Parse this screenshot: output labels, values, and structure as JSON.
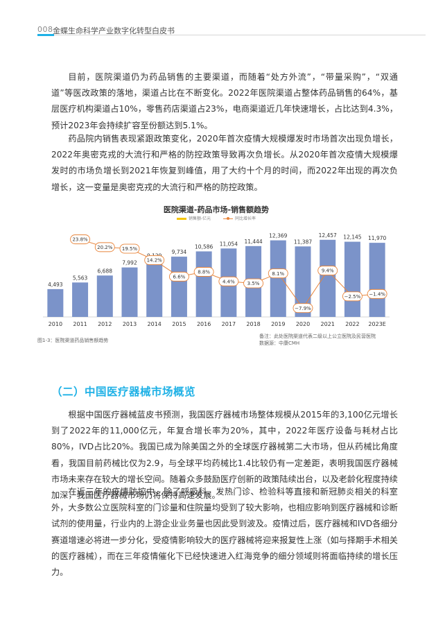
{
  "header": {
    "page_number": "008",
    "title": "金蝶生命科学产业数字化转型白皮书"
  },
  "paragraphs_top": [
    "目前，医院渠道仍为药品销售的主要渠道，而随着“处方外流”，“带量采购”，“双通道”等医改政策的落地，渠道占比在不断变化。2022年医院渠道占整体药品销售的64%，基层医疗机构渠道占10%，零售药店渠道占23%，电商渠道近几年快速增长，占比达到4.3%，预计2023年会持续扩容至份额达到5.1%。",
    "药品院内销售表现紧跟政策变化，2020年首次疫情大规模爆发时市场首次出现负增长，2022年奥密克戎的大流行和严格的防控政策导致再次负增长。从2020年首次疫情大规模爆发时的市场负增长到2021年恢复到峰值，用了大约十个月的时间，而2022年出现的再次负增长，这一变量是奥密克戎的大流行和严格的防控政策。"
  ],
  "chart_data": {
    "type": "bar",
    "title": "医院渠道-药品市场-销售额趋势",
    "legend": [
      "销售额-亿元",
      "同比增长率"
    ],
    "legend_position": "top",
    "categories": [
      "2010",
      "2011",
      "2012",
      "2013",
      "2014",
      "2015",
      "2016",
      "2017",
      "2018",
      "2019",
      "2020",
      "2021",
      "2022",
      "2023E"
    ],
    "series": [
      {
        "name": "销售额-亿元",
        "type": "bar",
        "color": "#7b93c9",
        "values": [
          4493,
          5563,
          6688,
          7992,
          9129,
          9734,
          10586,
          11054,
          11444,
          12369,
          11387,
          12457,
          12145,
          11970
        ],
        "labels": [
          "4,493",
          "5,563",
          "6,688",
          "7,992",
          "9,129",
          "9,734",
          "10,586",
          "11,054",
          "11,444",
          "12,369",
          "11,387",
          "12,457",
          "12,145",
          "11,970"
        ]
      },
      {
        "name": "同比增长率",
        "type": "line",
        "color": "#e8843a",
        "values": [
          null,
          23.8,
          20.2,
          19.5,
          14.2,
          6.6,
          8.8,
          4.4,
          3.5,
          8.1,
          -7.9,
          9.4,
          -2.5,
          -1.4
        ],
        "labels": [
          "",
          "23.8%",
          "20.2%",
          "19.5%",
          "14.2%",
          "6.6%",
          "8.8%",
          "4.4%",
          "3.5%",
          "8.1%",
          "−7.9%",
          "9.4%",
          "−2.5%",
          "−1.4%"
        ]
      }
    ],
    "ylim_bar": [
      0,
      14000
    ],
    "ylim_line": [
      -12,
      28
    ],
    "grid": false,
    "caption": "图1-3：医院渠道药品销售额趋势",
    "source_lines": [
      "备注：此处医院渠道代表二级以上公立医院及民营医院",
      "数据源：中康CMH"
    ]
  },
  "section": {
    "title": "（二）中国医疗器械市场概览"
  },
  "paragraphs_bottom": [
    "根据中国医疗器械蓝皮书预测，我国医疗器械市场整体规模从2015年的3,100亿元增长到了2022年的11,000亿元，年复合增长率为20%，其中，2022年医疗设备与耗材占比80%，IVD占比20%。我国已成为除美国之外的全球医疗器械第二大市场，但从药械比角度看，我国目前药械比仅为2.9，与全球平均药械比1.4比较仍有一定差距，表明我国医疗器械市场未来存在较大的增长空间。随着众多鼓励医疗创新的政策陆续出台，以及老龄化程度持续加深，我国医疗器械市场仍将保持高速发展。",
    "在近三年的疫情防控中，除了呼吸科、发热门诊、检验科等直接和新冠肺炎相关的科室外，大多数公立医院科室的门诊量和住院量均受到了较大影响，也相应影响到医疗器械和诊断试剂的使用量，行业内的上游企业业务量也因此受到波及。疫情过后，医疗器械和IVD各细分赛道增速必将进一步分化，受疫情影响较大的医疗器械将迎来报复性上涨（如与择期手术相关的医疗器械），而在三年疫情催化下已经快速进入红海竞争的细分领域则将面临持续的增长压力。"
  ]
}
